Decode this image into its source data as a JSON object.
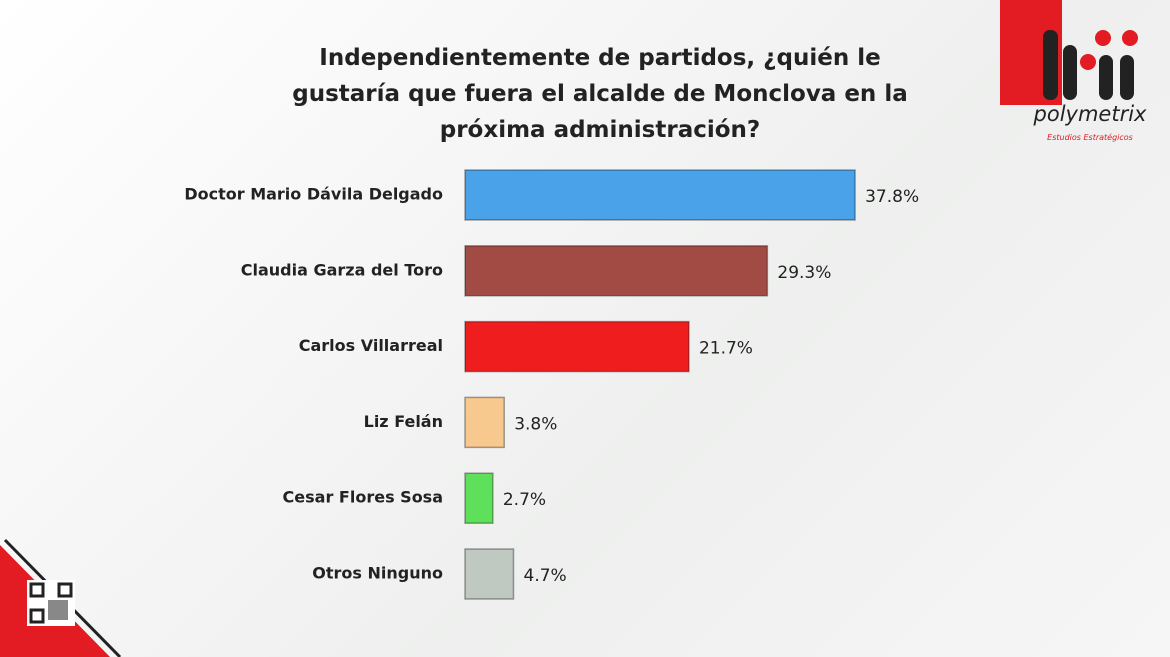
{
  "chart_data": {
    "type": "hbar",
    "title": "Independientemente de partidos, ¿quién le gustaría que fuera el alcalde de Monclova en la próxima administración?",
    "categories": [
      "Doctor Mario Dávila Delgado",
      "Claudia Garza del Toro",
      "Carlos Villarreal",
      "Liz Felán",
      "Cesar Flores Sosa",
      "Otros Ninguno"
    ],
    "values": [
      37.8,
      29.3,
      21.7,
      3.8,
      2.7,
      4.7
    ],
    "value_labels": [
      "37.8%",
      "29.3%",
      "21.7%",
      "3.8%",
      "2.7%",
      "4.7%"
    ],
    "colors": [
      "#4aa3e8",
      "#a24b45",
      "#ef1d1d",
      "#f8c98f",
      "#5fe05b",
      "#bfc8c1"
    ]
  },
  "logo": {
    "name": "polymetrix",
    "tagline": "Estudios Estratégicos"
  }
}
